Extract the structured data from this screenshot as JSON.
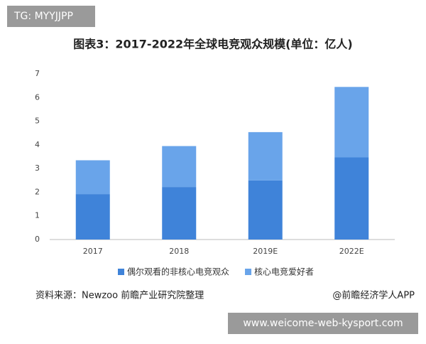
{
  "tag": "TG: MYYJJPP",
  "chart_data": {
    "type": "bar",
    "stacked": true,
    "title": "图表3：2017-2022年全球电竞观众规模(单位：亿人)",
    "categories": [
      "2017",
      "2018",
      "2019E",
      "2022E"
    ],
    "series": [
      {
        "name": "偶尔观看的非核心电竞观众",
        "color": "#3f83d9",
        "values": [
          1.92,
          2.22,
          2.5,
          3.47
        ]
      },
      {
        "name": "核心电竞爱好者",
        "color": "#69a4ea",
        "values": [
          1.43,
          1.73,
          2.04,
          2.98
        ]
      }
    ],
    "ylim": [
      0,
      7
    ],
    "yticks": [
      0,
      1,
      2,
      3,
      4,
      5,
      6,
      7
    ],
    "grid": false,
    "legend": "bottom"
  },
  "source": "资料来源：Newzoo 前瞻产业研究院整理",
  "credit": "@前瞻经济学人APP",
  "watermark": "www.weicome-web-kysport.com"
}
